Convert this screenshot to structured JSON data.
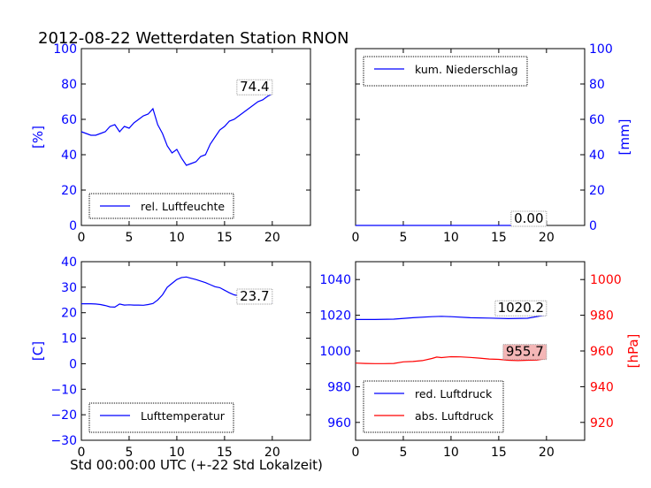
{
  "title": "2012-08-22 Wetterdaten Station RNON",
  "xlabel": "Std 00:00:00 UTC (+-22 Std Lokalzeit)",
  "colors": {
    "blue": "#0000ff",
    "red": "#ff0000",
    "axis": "#000000",
    "labelbox_red": "#f4b6b6"
  },
  "chart_data": [
    {
      "id": "humidity",
      "type": "line",
      "ylabel": "[%]",
      "xlim": [
        0,
        24
      ],
      "ylim": [
        0,
        100
      ],
      "xticks": [
        "0",
        "5",
        "10",
        "15",
        "20"
      ],
      "yticks": [
        "0",
        "20",
        "40",
        "60",
        "80",
        "100"
      ],
      "yaxis_side": "left",
      "legend": {
        "placement": "lower-left",
        "entries": [
          "rel. Luftfeuchte"
        ]
      },
      "end_label": "74.4",
      "series": [
        {
          "name": "rel. Luftfeuchte",
          "color": "#0000ff",
          "x": [
            0,
            0.5,
            1,
            1.5,
            2,
            2.5,
            3,
            3.5,
            4,
            4.5,
            5,
            5.5,
            6,
            6.5,
            7,
            7.5,
            8,
            8.5,
            9,
            9.5,
            10,
            10.5,
            11,
            11.5,
            12,
            12.5,
            13,
            13.5,
            14,
            14.5,
            15,
            15.5,
            16,
            16.5,
            17,
            17.5,
            18,
            18.5,
            19,
            19.5,
            20
          ],
          "y": [
            53,
            52,
            51,
            51,
            52,
            53,
            56,
            57,
            53,
            56,
            55,
            58,
            60,
            62,
            63,
            66,
            57,
            52,
            45,
            41,
            43,
            38,
            34,
            35,
            36,
            39,
            40,
            46,
            50,
            54,
            56,
            59,
            60,
            62,
            64,
            66,
            68,
            70,
            71,
            73,
            74.4
          ]
        }
      ]
    },
    {
      "id": "precip",
      "type": "line",
      "ylabel": "[mm]",
      "xlim": [
        0,
        24
      ],
      "ylim": [
        0,
        100
      ],
      "xticks": [
        "0",
        "5",
        "10",
        "15",
        "20"
      ],
      "yticks": [
        "0",
        "20",
        "40",
        "60",
        "80",
        "100"
      ],
      "yaxis_side": "right",
      "legend": {
        "placement": "upper-left",
        "entries": [
          "kum. Niederschlag"
        ]
      },
      "end_label": "0.00",
      "series": [
        {
          "name": "kum. Niederschlag",
          "color": "#0000ff",
          "x": [
            0,
            20
          ],
          "y": [
            0,
            0
          ]
        }
      ]
    },
    {
      "id": "temperature",
      "type": "line",
      "ylabel": "[C]",
      "xlim": [
        0,
        24
      ],
      "ylim": [
        -30,
        40
      ],
      "xticks": [
        "0",
        "5",
        "10",
        "15",
        "20"
      ],
      "yticks": [
        "−30",
        "−20",
        "−10",
        "0",
        "10",
        "20",
        "30",
        "40"
      ],
      "yaxis_side": "left",
      "legend": {
        "placement": "lower-left",
        "entries": [
          "Lufttemperatur"
        ]
      },
      "end_label": "23.7",
      "series": [
        {
          "name": "Lufttemperatur",
          "color": "#0000ff",
          "x": [
            0,
            0.5,
            1,
            1.5,
            2,
            2.5,
            3,
            3.5,
            4,
            4.5,
            5,
            5.5,
            6,
            6.5,
            7,
            7.5,
            8,
            8.5,
            9,
            9.5,
            10,
            10.5,
            11,
            11.5,
            12,
            12.5,
            13,
            13.5,
            14,
            14.5,
            15,
            15.5,
            16,
            16.5,
            17,
            17.5,
            18,
            18.5,
            19,
            19.5,
            20
          ],
          "y": [
            23.5,
            23.5,
            23.5,
            23.4,
            23.2,
            22.8,
            22.3,
            22.2,
            23.4,
            23.0,
            23.1,
            23.0,
            23.0,
            22.9,
            23.2,
            23.6,
            25,
            27,
            30,
            31.5,
            33,
            33.8,
            34,
            33.5,
            33,
            32.4,
            31.8,
            31,
            30.2,
            29.8,
            28.8,
            27.8,
            27,
            26.6,
            26.3,
            26.0,
            25.4,
            25,
            24.6,
            24.0,
            23.7
          ]
        }
      ]
    },
    {
      "id": "pressure",
      "type": "line",
      "ylabel": "[hPa]",
      "xlim": [
        0,
        24
      ],
      "ylim": [
        950,
        1050
      ],
      "ylim_right": [
        910,
        1010
      ],
      "xticks": [
        "0",
        "5",
        "10",
        "15",
        "20"
      ],
      "yticks": [
        "960",
        "980",
        "1000",
        "1020",
        "1040"
      ],
      "yticks_right": [
        "920",
        "940",
        "960",
        "980",
        "1000"
      ],
      "legend": {
        "placement": "lower-left",
        "entries": [
          "red. Luftdruck",
          "abs. Luftdruck"
        ]
      },
      "end_labels": [
        "1020.2",
        "955.7"
      ],
      "series": [
        {
          "name": "red. Luftdruck",
          "color": "#0000ff",
          "axis": "left",
          "x": [
            0,
            2,
            4,
            6,
            8,
            9,
            10,
            12,
            14,
            16,
            18,
            20
          ],
          "y": [
            1017.6,
            1017.6,
            1017.8,
            1018.6,
            1019.2,
            1019.4,
            1019.2,
            1018.6,
            1018.4,
            1018.1,
            1018.3,
            1020.2
          ]
        },
        {
          "name": "abs. Luftdruck",
          "color": "#ff0000",
          "axis": "right",
          "x": [
            0,
            1,
            2,
            3,
            4,
            5,
            6,
            7,
            8,
            8.5,
            9,
            10,
            11,
            12,
            13,
            14,
            15,
            16,
            17,
            18,
            19,
            20
          ],
          "y": [
            953.2,
            953.0,
            952.9,
            952.9,
            953.0,
            953.9,
            954.1,
            954.6,
            955.8,
            956.6,
            956.3,
            956.8,
            956.7,
            956.4,
            956.0,
            955.5,
            955.3,
            954.8,
            954.6,
            954.8,
            954.9,
            955.7
          ]
        }
      ]
    }
  ]
}
